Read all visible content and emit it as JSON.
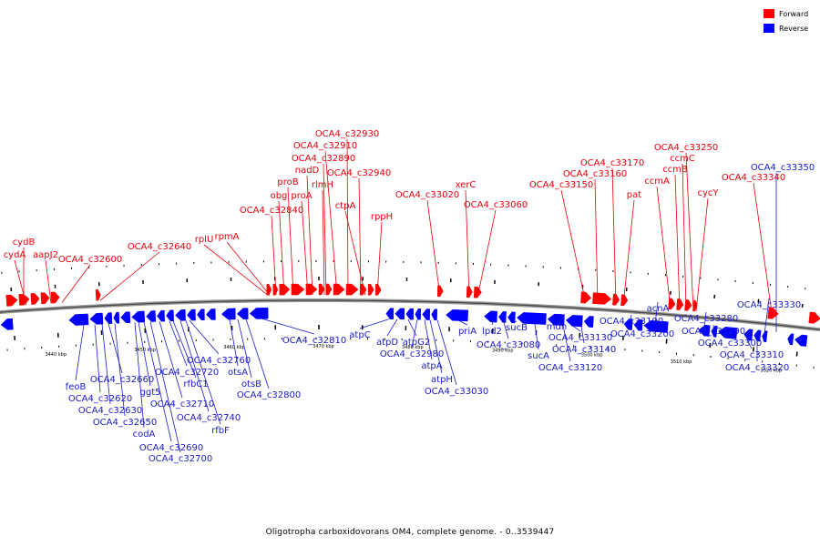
{
  "caption": "Oligotropha carboxidovorans OM4, complete genome. - 0..3539447",
  "legend": [
    {
      "label": "Forward",
      "color": "#ff0000"
    },
    {
      "label": "Reverse",
      "color": "#0000ff"
    }
  ],
  "colors": {
    "forward": "#ff0000",
    "reverse": "#0000ff",
    "forward_label": "#e8000b",
    "reverse_label": "#1a1acc"
  },
  "scale_ticks": [
    "3440 kbp",
    "3450 kbp",
    "3460 kbp",
    "3470 kbp",
    "3480 kbp",
    "3490 kbp",
    "3500 kbp",
    "3510 kbp",
    "3520 kbp"
  ],
  "forward_genes": [
    "cydB",
    "cydA",
    "aapJ2",
    "OCA4_c32600",
    "OCA4_c32640",
    "rplU",
    "rpmA",
    "OCA4_c32840",
    "obg",
    "proB",
    "proA",
    "nadD",
    "rlmH",
    "OCA4_c32890",
    "OCA4_c32910",
    "OCA4_c32930",
    "OCA4_c32940",
    "ctpA",
    "rppH",
    "OCA4_c33020",
    "xerC",
    "OCA4_c33060",
    "OCA4_c33150",
    "OCA4_c33160",
    "OCA4_c33170",
    "pat",
    "ccmA",
    "ccmB",
    "ccmC",
    "OCA4_c33250",
    "cycY",
    "OCA4_c33340"
  ],
  "reverse_genes": [
    "feoB",
    "OCA4_c32620",
    "OCA4_c32630",
    "OCA4_c32650",
    "OCA4_c32660",
    "codA",
    "ggt5",
    "OCA4_c32690",
    "OCA4_c32700",
    "OCA4_c32710",
    "OCA4_c32720",
    "rfbC1",
    "OCA4_c32740",
    "rfbF",
    "OCA4_c32760",
    "otsA",
    "otsB",
    "OCA4_c32800",
    "OCA4_c32810",
    "atpC",
    "atpD",
    "atpG2",
    "OCA4_c32980",
    "atpA",
    "atpH",
    "OCA4_c33030",
    "priA",
    "lpd2",
    "sucB",
    "OCA4_c33080",
    "sucA",
    "mdh",
    "OCA4_c33120",
    "OCA4_c33130",
    "OCA4_c33140",
    "OCA4_c33190",
    "OCA4_c33200",
    "acnA",
    "OCA4_c33280",
    "OCA4_c33290",
    "OCA4_c33300",
    "OCA4_c33310",
    "OCA4_c33320",
    "OCA4_c33330",
    "OCA4_c33350"
  ]
}
